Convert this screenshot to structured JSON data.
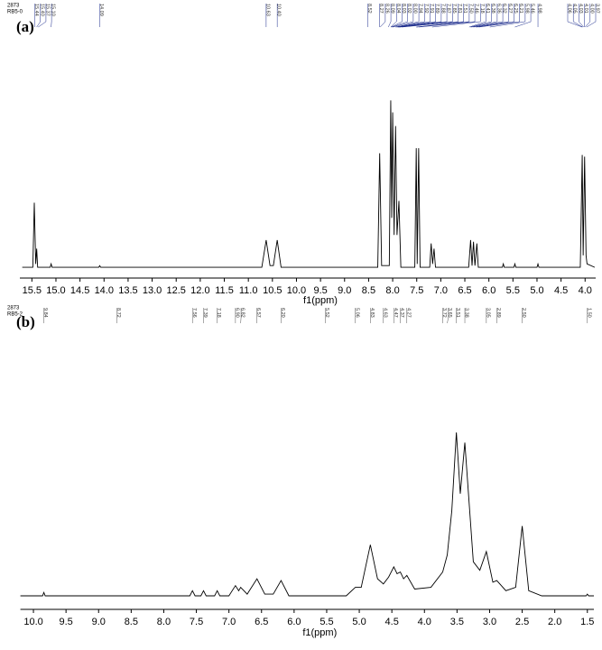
{
  "chart_data": [
    {
      "type": "line",
      "panel_label": "(a)",
      "sample_id": "2873",
      "sample_name": "RB5-0",
      "x_label": "f1(ppm)",
      "color": "#000000",
      "xlim": [
        15.75,
        3.78
      ],
      "ylim": [
        0,
        105
      ],
      "xticks": [
        15.5,
        {
          "value": 15,
          "label": "15.0"
        },
        14.5,
        {
          "value": 14,
          "label": "14.0"
        },
        13.5,
        {
          "value": 13,
          "label": "13.0"
        },
        12.5,
        {
          "value": 12,
          "label": "12.0"
        },
        11.5,
        {
          "value": 11,
          "label": "11.0"
        },
        10.5,
        {
          "value": 10,
          "label": "10.0"
        },
        9.5,
        {
          "value": 9,
          "label": "9.0"
        },
        8.5,
        {
          "value": 8,
          "label": "8.0"
        },
        7.5,
        {
          "value": 7,
          "label": "7.0"
        },
        6.5,
        {
          "value": 6,
          "label": "6.0"
        },
        5.5,
        {
          "value": 5,
          "label": "5.0"
        },
        4.5,
        {
          "value": 4,
          "label": "4.0"
        }
      ],
      "x": [
        15.7,
        15.48,
        15.45,
        15.42,
        15.4,
        15.38,
        15.12,
        15.1,
        15.08,
        14.11,
        14.09,
        14.07,
        10.72,
        10.63,
        10.55,
        10.48,
        10.4,
        10.32,
        8.31,
        8.27,
        8.23,
        8.07,
        8.04,
        8.02,
        8.0,
        7.97,
        7.94,
        7.91,
        7.87,
        7.83,
        7.54,
        7.51,
        7.49,
        7.46,
        7.43,
        7.23,
        7.2,
        7.17,
        7.14,
        7.11,
        6.42,
        6.38,
        6.35,
        6.32,
        6.29,
        6.25,
        6.22,
        5.72,
        5.7,
        5.68,
        5.48,
        5.46,
        5.44,
        5.0,
        4.98,
        4.96,
        4.1,
        4.06,
        4.04,
        4.01,
        3.98,
        3.96,
        3.8
      ],
      "values": [
        1,
        1,
        39,
        3,
        12,
        1,
        1,
        3,
        1,
        1,
        2,
        1,
        1,
        17,
        2,
        2,
        17,
        1,
        1,
        68,
        2,
        2,
        99,
        30,
        92,
        20,
        84,
        20,
        40,
        1,
        1,
        71,
        3,
        71,
        1,
        1,
        15,
        3,
        12,
        1,
        1,
        17,
        2,
        16,
        2,
        15,
        1,
        1,
        3,
        1,
        1,
        3,
        1,
        1,
        3,
        1,
        1,
        67,
        8,
        66,
        8,
        3,
        1
      ],
      "peak_labels": [
        "15.44",
        "15.40",
        "15.37",
        "15.10",
        "14.09",
        "10.63",
        "10.40",
        "8.52",
        "8.27",
        "8.26",
        "8.09",
        "8.04",
        "8.03",
        "8.02",
        "8.00",
        "7.94",
        "7.92",
        "7.91",
        "7.89",
        "7.88",
        "7.87",
        "7.85",
        "7.81",
        "7.51",
        "7.50",
        "7.46",
        "7.18",
        "6.41",
        "6.38",
        "6.36",
        "6.32",
        "6.27",
        "6.25",
        "6.21",
        "5.98",
        "5.46",
        "4.98",
        "4.06",
        "4.05",
        "4.03",
        "4.01",
        "4.00",
        "3.97"
      ]
    },
    {
      "type": "line",
      "panel_label": "(b)",
      "sample_id": "2873",
      "sample_name": "RB5-2",
      "x_label": "f1(ppm)",
      "color": "#000000",
      "xlim": [
        10.2,
        1.4
      ],
      "ylim": [
        0,
        105
      ],
      "xticks": [
        {
          "value": 10,
          "label": "10.0"
        },
        9.5,
        {
          "value": 9,
          "label": "9.0"
        },
        8.5,
        {
          "value": 8,
          "label": "8.0"
        },
        7.5,
        {
          "value": 7,
          "label": "7.0"
        },
        6.5,
        {
          "value": 6,
          "label": "6.0"
        },
        5.5,
        {
          "value": 5,
          "label": "5.0"
        },
        4.5,
        {
          "value": 4,
          "label": "4.0"
        },
        3.5,
        {
          "value": 3,
          "label": "3.0"
        },
        2.5,
        {
          "value": 2,
          "label": "2.0"
        },
        1.5
      ],
      "x": [
        10.2,
        9.86,
        9.84,
        9.82,
        7.6,
        7.56,
        7.52,
        7.43,
        7.39,
        7.35,
        7.22,
        7.18,
        7.14,
        7.0,
        6.9,
        6.85,
        6.82,
        6.72,
        6.57,
        6.45,
        6.32,
        6.2,
        6.08,
        5.2,
        5.06,
        4.97,
        4.83,
        4.72,
        4.63,
        4.55,
        4.47,
        4.42,
        4.37,
        4.32,
        4.27,
        4.15,
        3.9,
        3.72,
        3.65,
        3.58,
        3.51,
        3.45,
        3.38,
        3.25,
        3.15,
        3.05,
        2.95,
        2.89,
        2.75,
        2.6,
        2.5,
        2.4,
        2.2,
        1.52,
        1.5,
        1.48,
        1.4
      ],
      "values": [
        0,
        0,
        2,
        0,
        0,
        3,
        0,
        0,
        3,
        0,
        0,
        3,
        0,
        0,
        6,
        3,
        5,
        1,
        10,
        1,
        1,
        9,
        0,
        0,
        5,
        5,
        30,
        10,
        7,
        11,
        17,
        13,
        14,
        10,
        12,
        4,
        5,
        14,
        24,
        50,
        96,
        60,
        90,
        20,
        15,
        26,
        8,
        9,
        3,
        5,
        41,
        3,
        0,
        0,
        1,
        0,
        0
      ],
      "peak_labels": [
        "9.84",
        "8.72",
        "7.56",
        "7.39",
        "7.18",
        "6.90",
        "6.82",
        "6.57",
        "6.20",
        "5.52",
        "5.06",
        "4.83",
        "4.63",
        "4.47",
        "4.37",
        "4.27",
        "3.72",
        "3.65",
        "3.51",
        "3.38",
        "3.05",
        "2.89",
        "2.50",
        "1.50"
      ]
    }
  ]
}
